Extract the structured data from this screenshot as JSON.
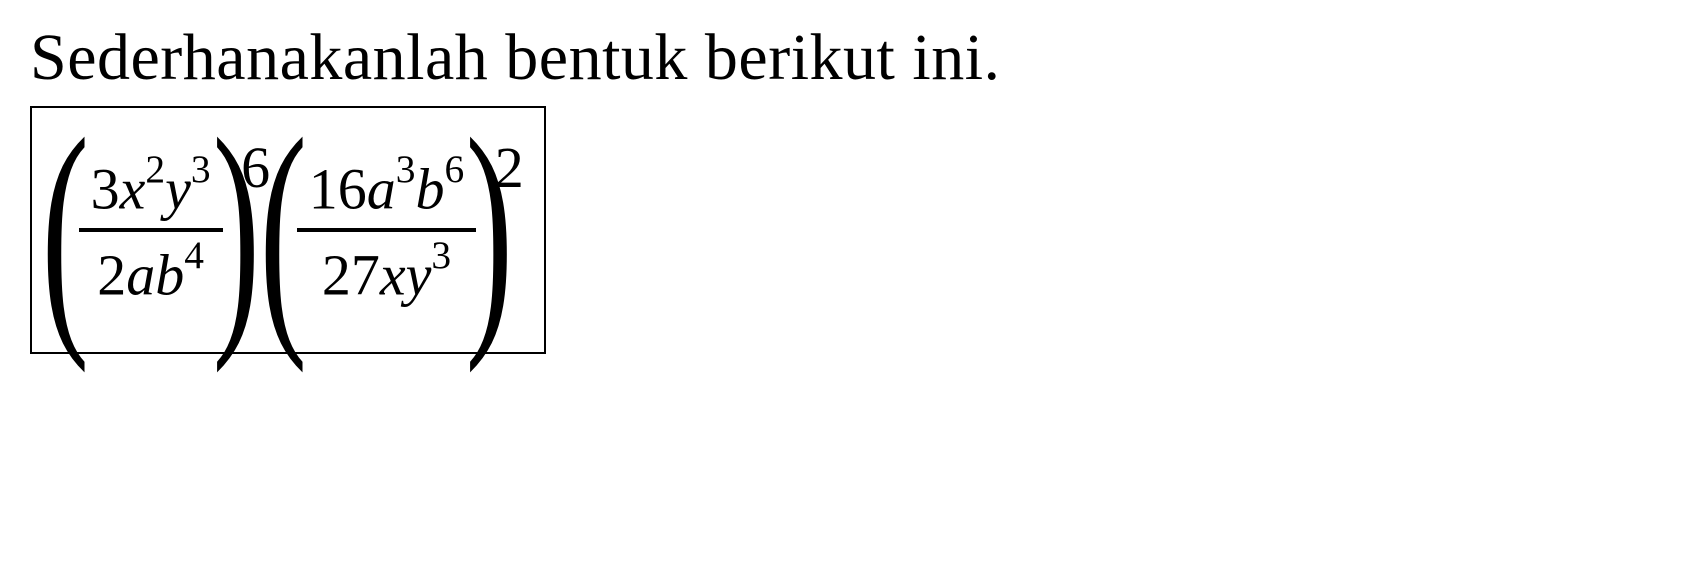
{
  "title": "Sederhanakanlah bentuk berikut ini.",
  "formula": {
    "group1": {
      "numerator": {
        "coef": "3",
        "term1_base": "x",
        "term1_exp": "2",
        "term2_base": "y",
        "term2_exp": "3"
      },
      "denominator": {
        "coef": "2",
        "term1_base": "a",
        "term2_base": "b",
        "term2_exp": "4"
      },
      "outer_exp": "6"
    },
    "group2": {
      "numerator": {
        "coef": "16",
        "term1_base": "a",
        "term1_exp": "3",
        "term2_base": "b",
        "term2_exp": "6"
      },
      "denominator": {
        "coef": "27",
        "term1_base": "x",
        "term2_base": "y",
        "term2_exp": "3"
      },
      "outer_exp": "2"
    }
  },
  "styling": {
    "text_color": "#000000",
    "background_color": "#ffffff",
    "border_color": "#000000",
    "title_fontsize": 66,
    "formula_fontsize": 58,
    "frac_line_width": 4,
    "box_border_width": 2
  }
}
